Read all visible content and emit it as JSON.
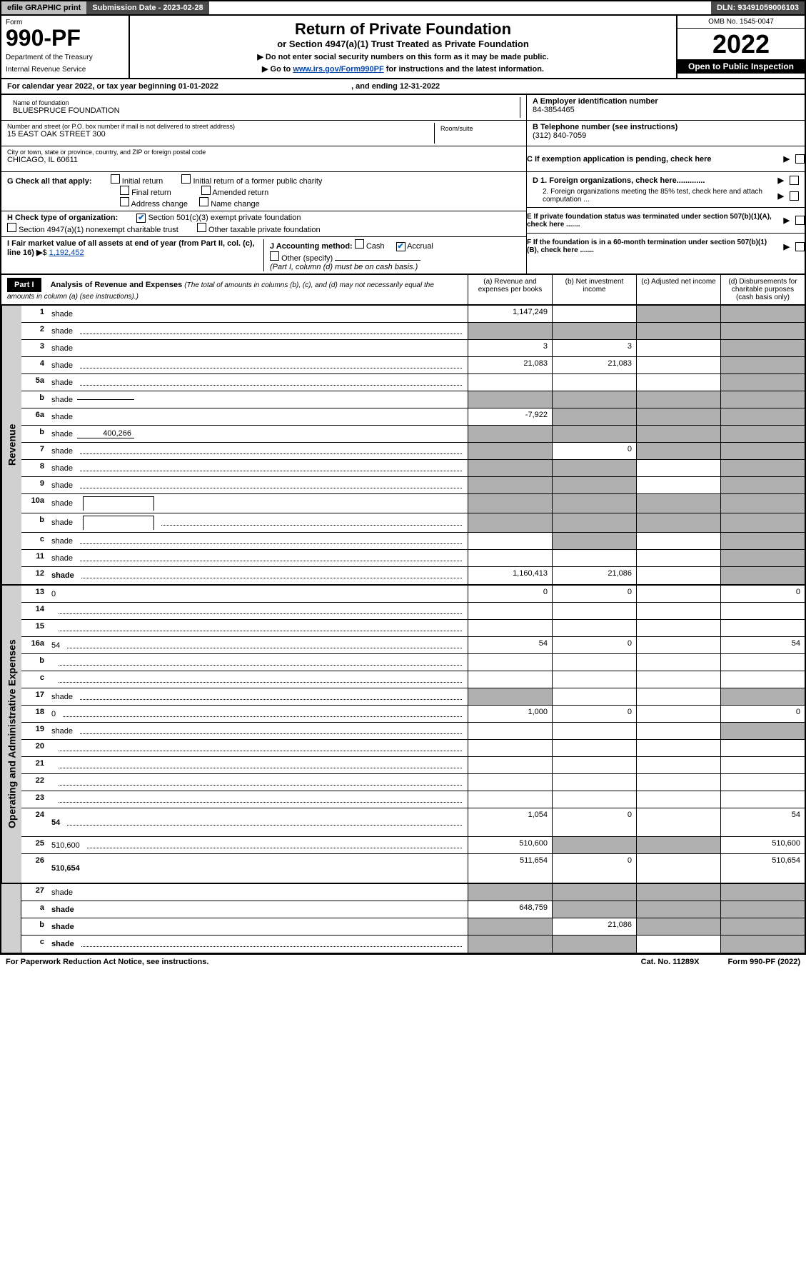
{
  "header": {
    "efile": "efile GRAPHIC print",
    "submission_label": "Submission Date - 2023-02-28",
    "dln": "DLN: 93491059006103"
  },
  "top": {
    "form_label": "Form",
    "form_no": "990-PF",
    "dept1": "Department of the Treasury",
    "dept2": "Internal Revenue Service",
    "title": "Return of Private Foundation",
    "subtitle": "or Section 4947(a)(1) Trust Treated as Private Foundation",
    "instr1": "▶ Do not enter social security numbers on this form as it may be made public.",
    "instr2_pre": "▶ Go to ",
    "instr2_link": "www.irs.gov/Form990PF",
    "instr2_post": " for instructions and the latest information.",
    "omb": "OMB No. 1545-0047",
    "year": "2022",
    "open": "Open to Public Inspection"
  },
  "calendar": {
    "text_pre": "For calendar year 2022, or tax year beginning ",
    "begin": "01-01-2022",
    "mid": ", and ending ",
    "end": "12-31-2022"
  },
  "info": {
    "name_lbl": "Name of foundation",
    "name": "BLUESPRUCE FOUNDATION",
    "addr_lbl": "Number and street (or P.O. box number if mail is not delivered to street address)",
    "addr": "15 EAST OAK STREET 300",
    "room_lbl": "Room/suite",
    "city_lbl": "City or town, state or province, country, and ZIP or foreign postal code",
    "city": "CHICAGO, IL  60611",
    "a_lbl": "A Employer identification number",
    "a_val": "84-3854465",
    "b_lbl": "B Telephone number (see instructions)",
    "b_val": "(312) 840-7059",
    "c_lbl": "C If exemption application is pending, check here",
    "d1_lbl": "D 1. Foreign organizations, check here.............",
    "d2_lbl": "2. Foreign organizations meeting the 85% test, check here and attach computation ...",
    "e_lbl": "E  If private foundation status was terminated under section 507(b)(1)(A), check here .......",
    "f_lbl": "F  If the foundation is in a 60-month termination under section 507(b)(1)(B), check here .......",
    "g_lbl": "G Check all that apply:",
    "g_opts": [
      "Initial return",
      "Initial return of a former public charity",
      "Final return",
      "Amended return",
      "Address change",
      "Name change"
    ],
    "h_lbl": "H Check type of organization:",
    "h_opt1": "Section 501(c)(3) exempt private foundation",
    "h_opt2": "Section 4947(a)(1) nonexempt charitable trust",
    "h_opt3": "Other taxable private foundation",
    "i_lbl": "I Fair market value of all assets at end of year (from Part II, col. (c), line 16)",
    "i_val": "1,192,452",
    "j_lbl": "J Accounting method:",
    "j_cash": "Cash",
    "j_accrual": "Accrual",
    "j_other": "Other (specify)",
    "j_note": "(Part I, column (d) must be on cash basis.)"
  },
  "part1": {
    "label": "Part I",
    "title": "Analysis of Revenue and Expenses",
    "title_note": "(The total of amounts in columns (b), (c), and (d) may not necessarily equal the amounts in column (a) (see instructions).)",
    "col_a": "(a)   Revenue and expenses per books",
    "col_b": "(b)   Net investment income",
    "col_c": "(c)   Adjusted net income",
    "col_d": "(d)   Disbursements for charitable purposes (cash basis only)"
  },
  "sections": {
    "revenue": "Revenue",
    "opex": "Operating and Administrative Expenses"
  },
  "rows": [
    {
      "n": "1",
      "d": "shade",
      "a": "1,147,249",
      "b": "",
      "c": "shade"
    },
    {
      "n": "2",
      "d": "shade",
      "a": "shade",
      "b": "shade",
      "c": "shade",
      "dots": true
    },
    {
      "n": "3",
      "d": "shade",
      "a": "3",
      "b": "3",
      "c": ""
    },
    {
      "n": "4",
      "d": "shade",
      "a": "21,083",
      "b": "21,083",
      "c": "",
      "dots": true
    },
    {
      "n": "5a",
      "d": "shade",
      "a": "",
      "b": "",
      "c": "",
      "dots": true
    },
    {
      "n": "b",
      "d": "shade",
      "a": "shade",
      "b": "shade",
      "c": "shade",
      "inline": ""
    },
    {
      "n": "6a",
      "d": "shade",
      "a": "-7,922",
      "b": "shade",
      "c": "shade"
    },
    {
      "n": "b",
      "d": "shade",
      "a": "shade",
      "b": "shade",
      "c": "shade",
      "inline": "400,266"
    },
    {
      "n": "7",
      "d": "shade",
      "a": "shade",
      "b": "0",
      "c": "shade",
      "dots": true
    },
    {
      "n": "8",
      "d": "shade",
      "a": "shade",
      "b": "shade",
      "c": "",
      "dots": true
    },
    {
      "n": "9",
      "d": "shade",
      "a": "shade",
      "b": "shade",
      "c": "",
      "dots": true
    },
    {
      "n": "10a",
      "d": "shade",
      "a": "shade",
      "b": "shade",
      "c": "shade",
      "box": true
    },
    {
      "n": "b",
      "d": "shade",
      "a": "shade",
      "b": "shade",
      "c": "shade",
      "box": true,
      "dots": true
    },
    {
      "n": "c",
      "d": "shade",
      "a": "",
      "b": "shade",
      "c": "",
      "dots": true
    },
    {
      "n": "11",
      "d": "shade",
      "a": "",
      "b": "",
      "c": "",
      "dots": true
    },
    {
      "n": "12",
      "d": "shade",
      "a": "1,160,413",
      "b": "21,086",
      "c": "",
      "bold": true,
      "dots": true
    }
  ],
  "oprows": [
    {
      "n": "13",
      "d": "0",
      "a": "0",
      "b": "0",
      "c": ""
    },
    {
      "n": "14",
      "d": "",
      "a": "",
      "b": "",
      "c": "",
      "dots": true
    },
    {
      "n": "15",
      "d": "",
      "a": "",
      "b": "",
      "c": "",
      "dots": true
    },
    {
      "n": "16a",
      "d": "54",
      "a": "54",
      "b": "0",
      "c": "",
      "dots": true
    },
    {
      "n": "b",
      "d": "",
      "a": "",
      "b": "",
      "c": "",
      "dots": true
    },
    {
      "n": "c",
      "d": "",
      "a": "",
      "b": "",
      "c": "",
      "dots": true
    },
    {
      "n": "17",
      "d": "shade",
      "a": "shade",
      "b": "",
      "c": "",
      "dots": true
    },
    {
      "n": "18",
      "d": "0",
      "a": "1,000",
      "b": "0",
      "c": "",
      "dots": true
    },
    {
      "n": "19",
      "d": "shade",
      "a": "",
      "b": "",
      "c": "",
      "dots": true
    },
    {
      "n": "20",
      "d": "",
      "a": "",
      "b": "",
      "c": "",
      "dots": true
    },
    {
      "n": "21",
      "d": "",
      "a": "",
      "b": "",
      "c": "",
      "dots": true
    },
    {
      "n": "22",
      "d": "",
      "a": "",
      "b": "",
      "c": "",
      "dots": true
    },
    {
      "n": "23",
      "d": "",
      "a": "",
      "b": "",
      "c": "",
      "dots": true
    },
    {
      "n": "24",
      "d": "54",
      "a": "1,054",
      "b": "0",
      "c": "",
      "bold": true,
      "dots": true,
      "tall": true
    },
    {
      "n": "25",
      "d": "510,600",
      "a": "510,600",
      "b": "shade",
      "c": "shade",
      "dots": true
    },
    {
      "n": "26",
      "d": "510,654",
      "a": "511,654",
      "b": "0",
      "c": "",
      "bold": true,
      "tall": true
    }
  ],
  "netrows": [
    {
      "n": "27",
      "d": "shade",
      "a": "shade",
      "b": "shade",
      "c": "shade"
    },
    {
      "n": "a",
      "d": "shade",
      "a": "648,759",
      "b": "shade",
      "c": "shade",
      "bold": true
    },
    {
      "n": "b",
      "d": "shade",
      "a": "shade",
      "b": "21,086",
      "c": "shade",
      "bold": true
    },
    {
      "n": "c",
      "d": "shade",
      "a": "shade",
      "b": "shade",
      "c": "",
      "bold": true,
      "dots": true
    }
  ],
  "footer": {
    "left": "For Paperwork Reduction Act Notice, see instructions.",
    "mid": "Cat. No. 11289X",
    "right": "Form 990-PF (2022)"
  },
  "colors": {
    "shade": "#b0b0b0",
    "header_dark": "#4a4a4a",
    "link": "#0645ad",
    "check": "#0066cc"
  }
}
